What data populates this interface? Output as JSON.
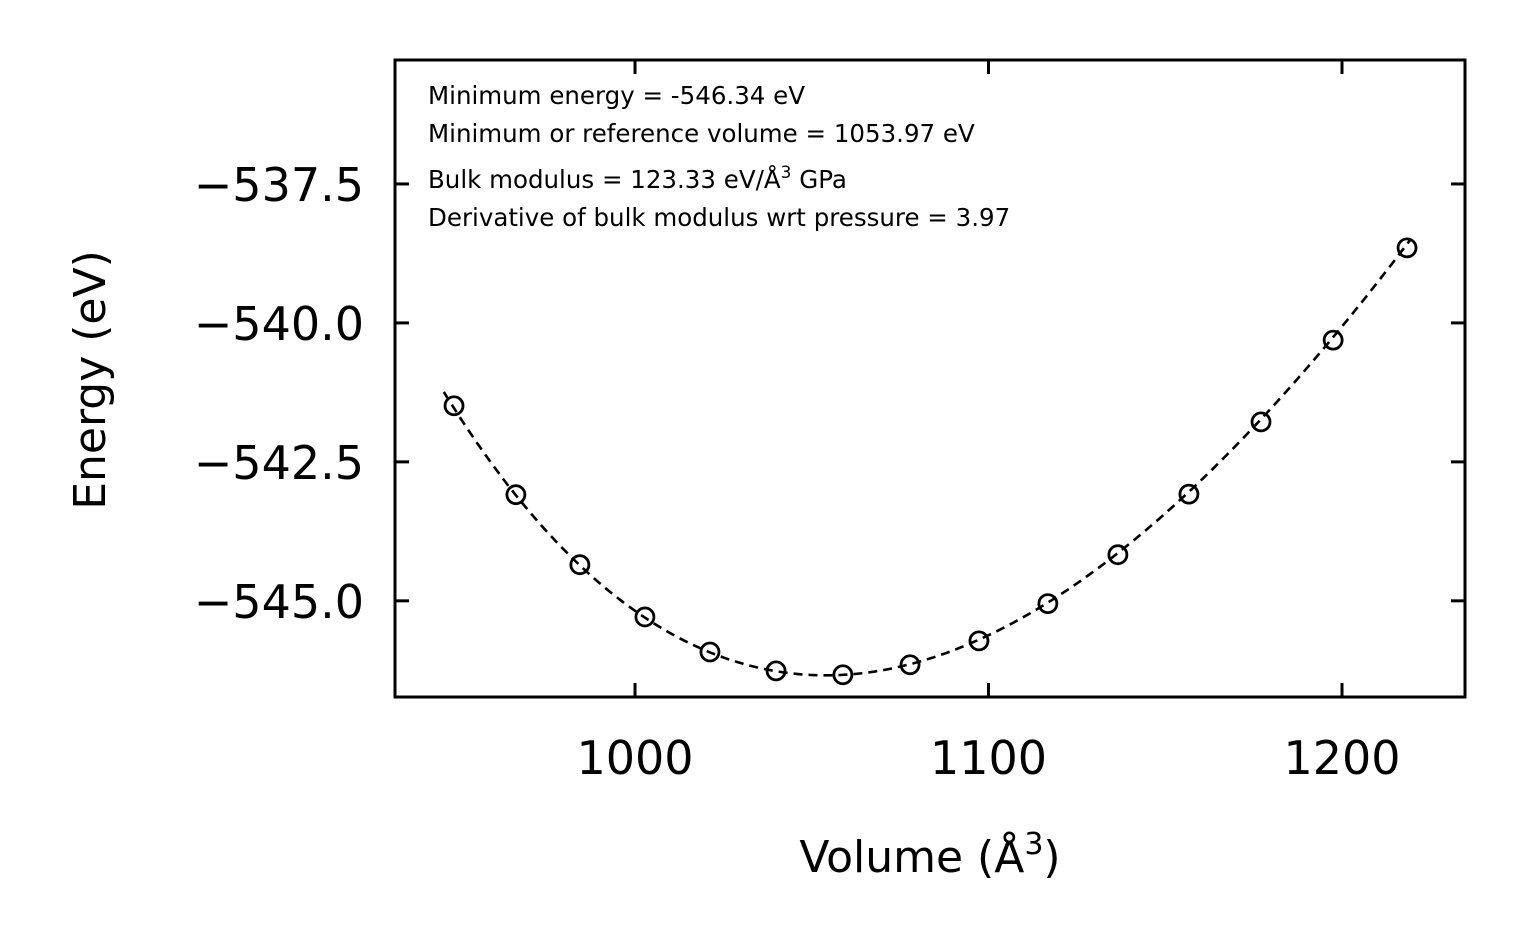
{
  "chart_data": {
    "type": "scatter",
    "title": "",
    "xlabel": "Volume (Å",
    "xlabel_sup": "3",
    "xlabel_end": ")",
    "ylabel": "Energy (eV)",
    "xlim": [
      932.1,
      1234.8
    ],
    "ylim": [
      -546.73,
      -535.27
    ],
    "xticks": [
      1000,
      1100,
      1200
    ],
    "xtick_labels": [
      "1000",
      "1100",
      "1200"
    ],
    "yticks": [
      -537.5,
      -540.0,
      -542.5,
      -545.0
    ],
    "ytick_labels": [
      "−537.5",
      "−540.0",
      "−542.5",
      "−545.0"
    ],
    "grid": false,
    "series": [
      {
        "name": "data",
        "marker": "open-circle",
        "x": [
          948.8,
          966.3,
          984.4,
          1002.8,
          1021.2,
          1039.9,
          1058.8,
          1077.8,
          1097.3,
          1116.8,
          1136.6,
          1156.7,
          1177.1,
          1197.5,
          1218.4
        ],
        "y": [
          -541.49,
          -543.09,
          -544.35,
          -545.29,
          -545.92,
          -546.26,
          -546.33,
          -546.15,
          -545.72,
          -545.05,
          -544.17,
          -543.08,
          -541.78,
          -540.31,
          -538.65
        ]
      },
      {
        "name": "fit",
        "style": "dashed",
        "x_range": [
          945.9,
          1219.5
        ],
        "E0": -546.34,
        "V0": 1053.97,
        "B_GPa": 123.33,
        "Bp": 3.97
      }
    ],
    "annotations": [
      "Minimum energy = -546.34 eV",
      "Minimum or reference volume = 1053.97 eV",
      "Bulk modulus = 123.33 eV/Å",
      "3",
      " GPa",
      "Derivative of bulk modulus wrt pressure = 3.97"
    ]
  }
}
